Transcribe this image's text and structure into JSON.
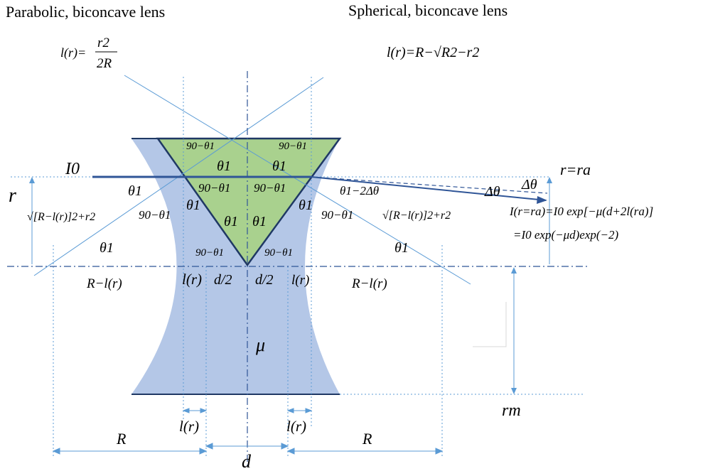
{
  "titles": {
    "parabolic": "Parabolic, biconcave lens",
    "spherical": "Spherical, biconcave lens"
  },
  "formulas": {
    "parabolic_lhs": "l(r)=",
    "parabolic_num": "r2",
    "parabolic_den": "2R",
    "spherical": "l(r)=R−√R2−r2",
    "intensity_line1": "I(r=ra)=I0 exp[−μ(d+2l(ra)]",
    "intensity_line2": "=I0 exp(−μd)exp(−2)"
  },
  "labels": {
    "I0": "I0",
    "r": "r",
    "r_eq_ra": "r=ra",
    "delta_theta_1": "Δθ",
    "delta_theta_2": "Δθ",
    "theta1_minus_2dtheta": "θ1−2Δθ",
    "hyp_left": "√[R−l(r)]2+r2",
    "hyp_right": "√[R−l(r)]2+r2",
    "R_minus_l_left": "R−l(r)",
    "R_minus_l_right": "R−l(r)",
    "l_r_left": "l(r)",
    "l_r_right": "l(r)",
    "d2_left": "d/2",
    "d2_right": "d/2",
    "mu": "μ",
    "r_m": "rm",
    "l_r_bottom_left": "l(r)",
    "l_r_bottom_right": "l(r)",
    "R_bottom_left": "R",
    "R_bottom_right": "R",
    "d_bottom": "d",
    "theta1": "θ1",
    "ninety_minus_theta1": "90−θ1"
  },
  "colors": {
    "lens_fill": "#b4c7e7",
    "triangle_fill": "#a9d18e",
    "line_blue": "#2f5597",
    "guide_blue": "#5b9bd5",
    "triangle_edge": "#1f3864"
  }
}
